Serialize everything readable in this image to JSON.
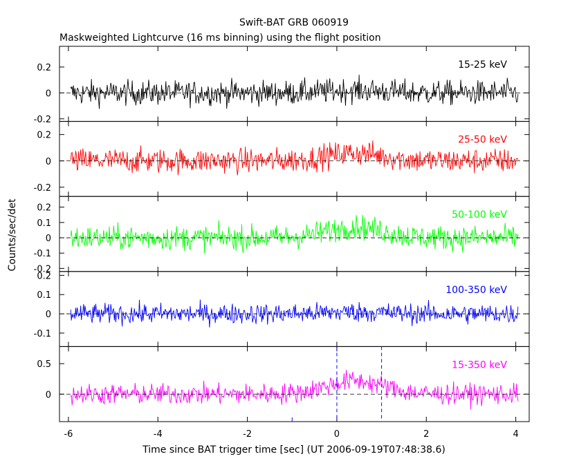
{
  "chart_data": {
    "type": "line",
    "title": "Swift-BAT GRB 060919",
    "subtitle": "Maskweighted Lightcurve (16 ms binning) using the flight position",
    "xlabel": "Time since BAT trigger time [sec] (UT 2006-09-19T07:48:38.6)",
    "ylabel": "Counts/sec/det",
    "xlim": [
      -6.2,
      4.3
    ],
    "x_ticks": [
      -6,
      -4,
      -2,
      0,
      2,
      4
    ],
    "x_tick_labels": [
      "-6",
      "-4",
      "-2",
      "0",
      "2",
      "4"
    ],
    "bin_size_sec": 0.016,
    "x_start": -5.95,
    "x_end": 4.05,
    "panels": [
      {
        "band": "15-25 keV",
        "color": "#000000",
        "ylim": [
          -0.22,
          0.36
        ],
        "y_ticks": [
          -0.2,
          0,
          0.2
        ],
        "y_tick_labels": [
          "-0.2",
          "0",
          "0.2"
        ],
        "noise_amplitude": 0.09,
        "signal_peak": 0.02
      },
      {
        "band": "25-50 keV",
        "color": "#ff0000",
        "ylim": [
          -0.27,
          0.3
        ],
        "y_ticks": [
          -0.2,
          0,
          0.2
        ],
        "y_tick_labels": [
          "-0.2",
          "0",
          "0.2"
        ],
        "noise_amplitude": 0.09,
        "signal_peak": 0.06
      },
      {
        "band": "50-100 keV",
        "color": "#00ff00",
        "ylim": [
          -0.22,
          0.27
        ],
        "y_ticks": [
          -0.2,
          -0.1,
          0,
          0.1,
          0.2
        ],
        "y_tick_labels": [
          "-0.2",
          "-0.1",
          "0",
          "0.1",
          "0.2"
        ],
        "noise_amplitude": 0.075,
        "signal_peak": 0.07
      },
      {
        "band": "100-350 keV",
        "color": "#0000ff",
        "ylim": [
          -0.17,
          0.22
        ],
        "y_ticks": [
          -0.1,
          0,
          0.1,
          0.2
        ],
        "y_tick_labels": [
          "-0.1",
          "0",
          "0.1",
          "0.2"
        ],
        "noise_amplitude": 0.05,
        "signal_peak": 0.01
      },
      {
        "band": "15-350 keV",
        "color": "#ff00ff",
        "ylim": [
          -0.45,
          0.78
        ],
        "y_ticks": [
          0,
          0.5
        ],
        "y_tick_labels": [
          "0",
          "0.5"
        ],
        "noise_amplitude": 0.16,
        "signal_peak": 0.22
      }
    ],
    "markers": {
      "trigger_line_x": 0,
      "interval_end_x": 1.0,
      "interval_start_x": -1.0,
      "style": "dashed-blue"
    }
  }
}
